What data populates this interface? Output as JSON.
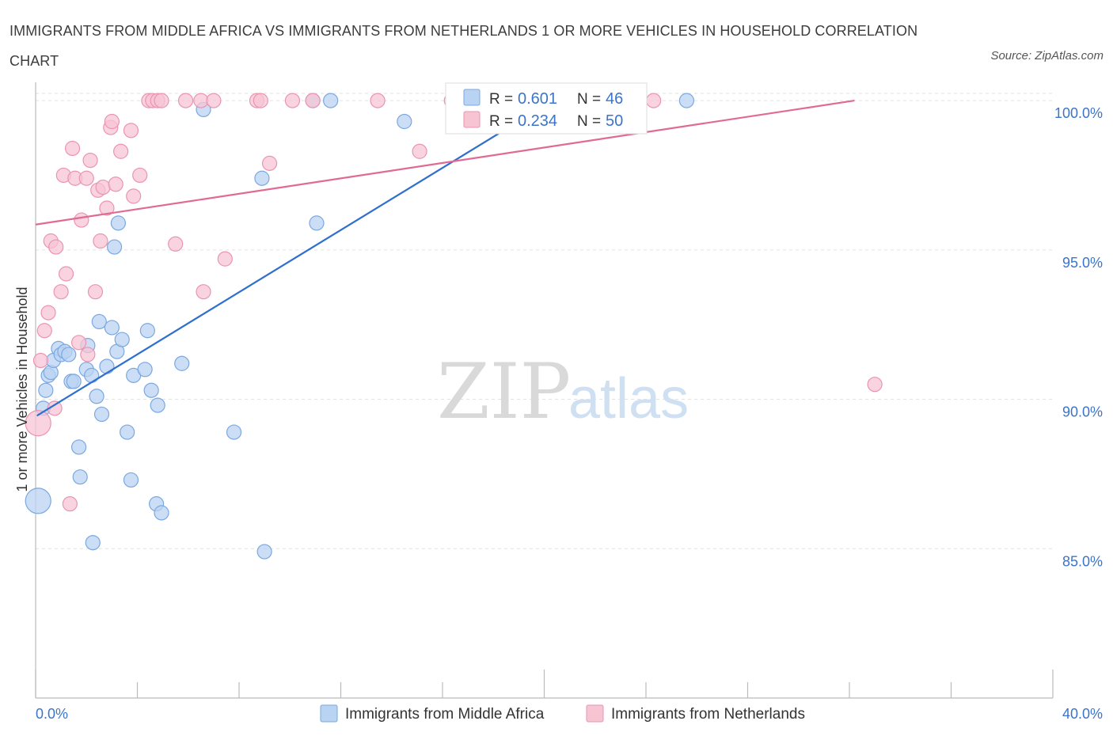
{
  "title": "IMMIGRANTS FROM MIDDLE AFRICA VS IMMIGRANTS FROM NETHERLANDS 1 OR MORE VEHICLES IN HOUSEHOLD CORRELATION CHART",
  "source": "Source: ZipAtlas.com",
  "watermark": {
    "zip": "ZIP",
    "atlas": "atlas"
  },
  "colors": {
    "blue_fill": "#b9d3f3",
    "blue_stroke": "#7aa8e0",
    "blue_line": "#2f6fce",
    "pink_fill": "#f7c4d4",
    "pink_stroke": "#eb94b1",
    "pink_line": "#e06a93",
    "grid": "#e2e2e2",
    "tick_text": "#3b74c9"
  },
  "chart_data": {
    "type": "scatter",
    "title": "IMMIGRANTS FROM MIDDLE AFRICA VS IMMIGRANTS FROM NETHERLANDS 1 OR MORE VEHICLES IN HOUSEHOLD CORRELATION CHART",
    "xlabel": "",
    "ylabel": "1 or more Vehicles in Household",
    "xlim": [
      0,
      40
    ],
    "ylim": [
      80,
      100.4
    ],
    "x_tick_labels": [
      "0.0%",
      "40.0%"
    ],
    "y_ticks": [
      85,
      90,
      95,
      100
    ],
    "y_tick_labels": [
      "85.0%",
      "90.0%",
      "95.0%",
      "100.0%"
    ],
    "grid": true,
    "legend": [
      {
        "r_label": "R =",
        "r_value": "0.601",
        "n_label": "N =",
        "n_value": "46"
      },
      {
        "r_label": "R =",
        "r_value": "0.234",
        "n_label": "N =",
        "n_value": "50"
      }
    ],
    "series": [
      {
        "name": "Immigrants from Middle Africa",
        "color": "blue",
        "trend": {
          "x": [
            0.05,
            21.1
          ],
          "y": [
            89.45,
            100.4
          ]
        },
        "points": [
          {
            "x": 0.1,
            "y": 86.6,
            "s": 16
          },
          {
            "x": 0.3,
            "y": 89.7,
            "s": 9
          },
          {
            "x": 0.4,
            "y": 90.3,
            "s": 9
          },
          {
            "x": 0.5,
            "y": 90.8,
            "s": 9
          },
          {
            "x": 0.6,
            "y": 90.9,
            "s": 9
          },
          {
            "x": 0.7,
            "y": 91.3,
            "s": 9
          },
          {
            "x": 0.9,
            "y": 91.7,
            "s": 9
          },
          {
            "x": 1.0,
            "y": 91.5,
            "s": 9
          },
          {
            "x": 1.15,
            "y": 91.6,
            "s": 9
          },
          {
            "x": 1.3,
            "y": 91.5,
            "s": 9
          },
          {
            "x": 1.4,
            "y": 90.6,
            "s": 9
          },
          {
            "x": 1.5,
            "y": 90.6,
            "s": 9
          },
          {
            "x": 1.7,
            "y": 88.4,
            "s": 9
          },
          {
            "x": 1.75,
            "y": 87.4,
            "s": 9
          },
          {
            "x": 2.0,
            "y": 91.0,
            "s": 9
          },
          {
            "x": 2.05,
            "y": 91.8,
            "s": 9
          },
          {
            "x": 2.2,
            "y": 90.8,
            "s": 9
          },
          {
            "x": 2.25,
            "y": 85.2,
            "s": 9
          },
          {
            "x": 2.4,
            "y": 90.1,
            "s": 9
          },
          {
            "x": 2.5,
            "y": 92.6,
            "s": 9
          },
          {
            "x": 2.6,
            "y": 89.5,
            "s": 9
          },
          {
            "x": 2.8,
            "y": 91.1,
            "s": 9
          },
          {
            "x": 3.0,
            "y": 92.4,
            "s": 9
          },
          {
            "x": 3.1,
            "y": 95.1,
            "s": 9
          },
          {
            "x": 3.2,
            "y": 91.6,
            "s": 9
          },
          {
            "x": 3.25,
            "y": 95.9,
            "s": 9
          },
          {
            "x": 3.4,
            "y": 92.0,
            "s": 9
          },
          {
            "x": 3.6,
            "y": 88.9,
            "s": 9
          },
          {
            "x": 3.75,
            "y": 87.3,
            "s": 9
          },
          {
            "x": 3.85,
            "y": 90.8,
            "s": 9
          },
          {
            "x": 4.3,
            "y": 91.0,
            "s": 9
          },
          {
            "x": 4.4,
            "y": 92.3,
            "s": 9
          },
          {
            "x": 4.55,
            "y": 90.3,
            "s": 9
          },
          {
            "x": 4.75,
            "y": 86.5,
            "s": 9
          },
          {
            "x": 4.8,
            "y": 89.8,
            "s": 9
          },
          {
            "x": 4.95,
            "y": 86.2,
            "s": 9
          },
          {
            "x": 5.75,
            "y": 91.2,
            "s": 9
          },
          {
            "x": 6.6,
            "y": 99.7,
            "s": 9
          },
          {
            "x": 7.8,
            "y": 88.9,
            "s": 9
          },
          {
            "x": 8.9,
            "y": 97.4,
            "s": 9
          },
          {
            "x": 9.0,
            "y": 84.9,
            "s": 9
          },
          {
            "x": 10.9,
            "y": 100.0,
            "s": 9
          },
          {
            "x": 11.05,
            "y": 95.9,
            "s": 9
          },
          {
            "x": 11.6,
            "y": 100.0,
            "s": 9
          },
          {
            "x": 14.5,
            "y": 99.3,
            "s": 9
          },
          {
            "x": 25.6,
            "y": 100.0,
            "s": 9
          }
        ]
      },
      {
        "name": "Immigrants from Netherlands",
        "color": "pink",
        "trend": {
          "x": 0.0,
          "x_end": 32.2,
          "y": [
            95.85,
            100.0
          ]
        },
        "points": [
          {
            "x": 0.1,
            "y": 89.2,
            "s": 16
          },
          {
            "x": 0.2,
            "y": 91.3,
            "s": 9
          },
          {
            "x": 0.35,
            "y": 92.3,
            "s": 9
          },
          {
            "x": 0.5,
            "y": 92.9,
            "s": 9
          },
          {
            "x": 0.6,
            "y": 95.3,
            "s": 9
          },
          {
            "x": 0.75,
            "y": 89.7,
            "s": 9
          },
          {
            "x": 0.8,
            "y": 95.1,
            "s": 9
          },
          {
            "x": 1.0,
            "y": 93.6,
            "s": 9
          },
          {
            "x": 1.1,
            "y": 97.5,
            "s": 9
          },
          {
            "x": 1.2,
            "y": 94.2,
            "s": 9
          },
          {
            "x": 1.35,
            "y": 86.5,
            "s": 9
          },
          {
            "x": 1.45,
            "y": 98.4,
            "s": 9
          },
          {
            "x": 1.55,
            "y": 97.4,
            "s": 9
          },
          {
            "x": 1.7,
            "y": 91.9,
            "s": 9
          },
          {
            "x": 1.8,
            "y": 96.0,
            "s": 9
          },
          {
            "x": 2.0,
            "y": 97.4,
            "s": 9
          },
          {
            "x": 2.05,
            "y": 91.5,
            "s": 9
          },
          {
            "x": 2.15,
            "y": 98.0,
            "s": 9
          },
          {
            "x": 2.35,
            "y": 93.6,
            "s": 9
          },
          {
            "x": 2.45,
            "y": 97.0,
            "s": 9
          },
          {
            "x": 2.55,
            "y": 95.3,
            "s": 9
          },
          {
            "x": 2.65,
            "y": 97.1,
            "s": 9
          },
          {
            "x": 2.8,
            "y": 96.4,
            "s": 9
          },
          {
            "x": 2.95,
            "y": 99.1,
            "s": 9
          },
          {
            "x": 3.0,
            "y": 99.3,
            "s": 9
          },
          {
            "x": 3.15,
            "y": 97.2,
            "s": 9
          },
          {
            "x": 3.35,
            "y": 98.3,
            "s": 9
          },
          {
            "x": 3.75,
            "y": 99.0,
            "s": 9
          },
          {
            "x": 3.85,
            "y": 96.8,
            "s": 9
          },
          {
            "x": 4.1,
            "y": 97.5,
            "s": 9
          },
          {
            "x": 4.45,
            "y": 100.0,
            "s": 9
          },
          {
            "x": 4.6,
            "y": 100.0,
            "s": 9
          },
          {
            "x": 4.8,
            "y": 100.0,
            "s": 9
          },
          {
            "x": 4.95,
            "y": 100.0,
            "s": 9
          },
          {
            "x": 5.5,
            "y": 95.2,
            "s": 9
          },
          {
            "x": 5.9,
            "y": 100.0,
            "s": 9
          },
          {
            "x": 6.5,
            "y": 100.0,
            "s": 9
          },
          {
            "x": 6.6,
            "y": 93.6,
            "s": 9
          },
          {
            "x": 7.0,
            "y": 100.0,
            "s": 9
          },
          {
            "x": 7.45,
            "y": 94.7,
            "s": 9
          },
          {
            "x": 8.7,
            "y": 100.0,
            "s": 9
          },
          {
            "x": 8.85,
            "y": 100.0,
            "s": 9
          },
          {
            "x": 9.2,
            "y": 97.9,
            "s": 9
          },
          {
            "x": 10.1,
            "y": 100.0,
            "s": 9
          },
          {
            "x": 10.9,
            "y": 100.0,
            "s": 9
          },
          {
            "x": 13.45,
            "y": 100.0,
            "s": 9
          },
          {
            "x": 15.1,
            "y": 98.3,
            "s": 9
          },
          {
            "x": 16.35,
            "y": 100.0,
            "s": 9
          },
          {
            "x": 24.3,
            "y": 100.0,
            "s": 9
          },
          {
            "x": 33.0,
            "y": 90.5,
            "s": 9
          }
        ]
      }
    ]
  }
}
